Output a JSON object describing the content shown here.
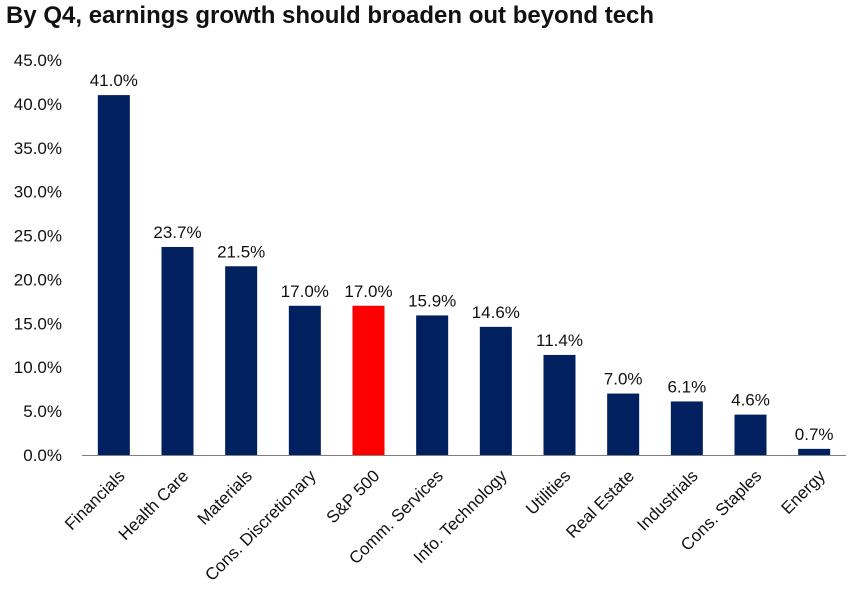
{
  "chart_data": {
    "type": "bar",
    "title": "By Q4, earnings growth should broaden out beyond tech",
    "xlabel": "",
    "ylabel": "",
    "ylim": [
      0,
      45
    ],
    "yticks": [
      "0.0%",
      "5.0%",
      "10.0%",
      "15.0%",
      "20.0%",
      "25.0%",
      "30.0%",
      "35.0%",
      "40.0%",
      "45.0%"
    ],
    "ytick_values": [
      0,
      5,
      10,
      15,
      20,
      25,
      30,
      35,
      40,
      45
    ],
    "grid": false,
    "categories": [
      "Financials",
      "Health Care",
      "Materials",
      "Cons. Discretionary",
      "S&P 500",
      "Comm. Services",
      "Info. Technology",
      "Utilities",
      "Real Estate",
      "Industrials",
      "Cons. Staples",
      "Energy"
    ],
    "values": [
      41.0,
      23.7,
      21.5,
      17.0,
      17.0,
      15.9,
      14.6,
      11.4,
      7.0,
      6.1,
      4.6,
      0.7
    ],
    "data_labels": [
      "41.0%",
      "23.7%",
      "21.5%",
      "17.0%",
      "17.0%",
      "15.9%",
      "14.6%",
      "11.4%",
      "7.0%",
      "6.1%",
      "4.6%",
      "0.7%"
    ],
    "highlight_index": 4,
    "colors": {
      "bar": "#002060",
      "highlight": "#ff0000",
      "axis": "#7f7f7f"
    }
  }
}
